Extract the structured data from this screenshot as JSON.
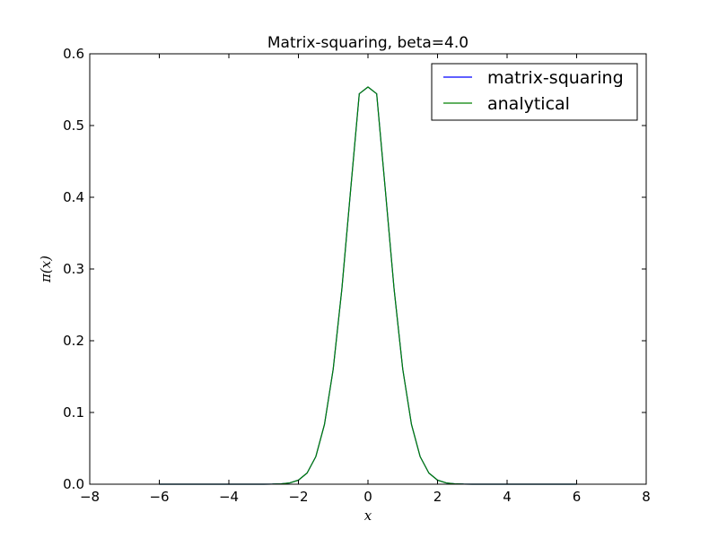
{
  "chart_data": {
    "type": "line",
    "title": "Matrix-squaring, beta=4.0",
    "xlabel": "x",
    "ylabel": "π(x)",
    "xlim": [
      -8,
      8
    ],
    "ylim": [
      0,
      0.6
    ],
    "x_ticks": [
      "−8",
      "−6",
      "−4",
      "−2",
      "0",
      "2",
      "4",
      "6",
      "8"
    ],
    "y_ticks": [
      "0.0",
      "0.1",
      "0.2",
      "0.3",
      "0.4",
      "0.5",
      "0.6"
    ],
    "grid": false,
    "legend_position": "upper-right",
    "x": [
      -6.0,
      -5.5,
      -5.0,
      -4.5,
      -4.0,
      -3.5,
      -3.0,
      -2.75,
      -2.5,
      -2.25,
      -2.0,
      -1.75,
      -1.5,
      -1.25,
      -1.0,
      -0.75,
      -0.5,
      -0.25,
      0.0,
      0.25,
      0.5,
      0.75,
      1.0,
      1.25,
      1.5,
      1.75,
      2.0,
      2.25,
      2.5,
      2.75,
      3.0,
      3.5,
      4.0,
      4.5,
      5.0,
      5.5,
      6.0
    ],
    "series": [
      {
        "name": "matrix-squaring",
        "color": "#0000ff",
        "values": [
          0.0,
          0.0,
          0.0,
          0.0,
          0.0,
          0.0,
          3e-05,
          0.00013,
          0.0005,
          0.00179,
          0.00563,
          0.01564,
          0.03843,
          0.08349,
          0.16043,
          0.27264,
          0.40965,
          0.5443,
          0.55376,
          0.5443,
          0.40965,
          0.27264,
          0.16043,
          0.08349,
          0.03843,
          0.01564,
          0.00563,
          0.00179,
          0.0005,
          0.00013,
          3e-05,
          0.0,
          0.0,
          0.0,
          0.0,
          0.0,
          0.0
        ]
      },
      {
        "name": "analytical",
        "color": "#008000",
        "values": [
          0.0,
          0.0,
          0.0,
          0.0,
          0.0,
          0.0,
          3e-05,
          0.00013,
          0.0005,
          0.00179,
          0.00563,
          0.01564,
          0.03843,
          0.08349,
          0.16043,
          0.27264,
          0.40965,
          0.5443,
          0.55376,
          0.5443,
          0.40965,
          0.27264,
          0.16043,
          0.08349,
          0.03843,
          0.01564,
          0.00563,
          0.00179,
          0.0005,
          0.00013,
          3e-05,
          0.0,
          0.0,
          0.0,
          0.0,
          0.0,
          0.0
        ]
      }
    ]
  }
}
